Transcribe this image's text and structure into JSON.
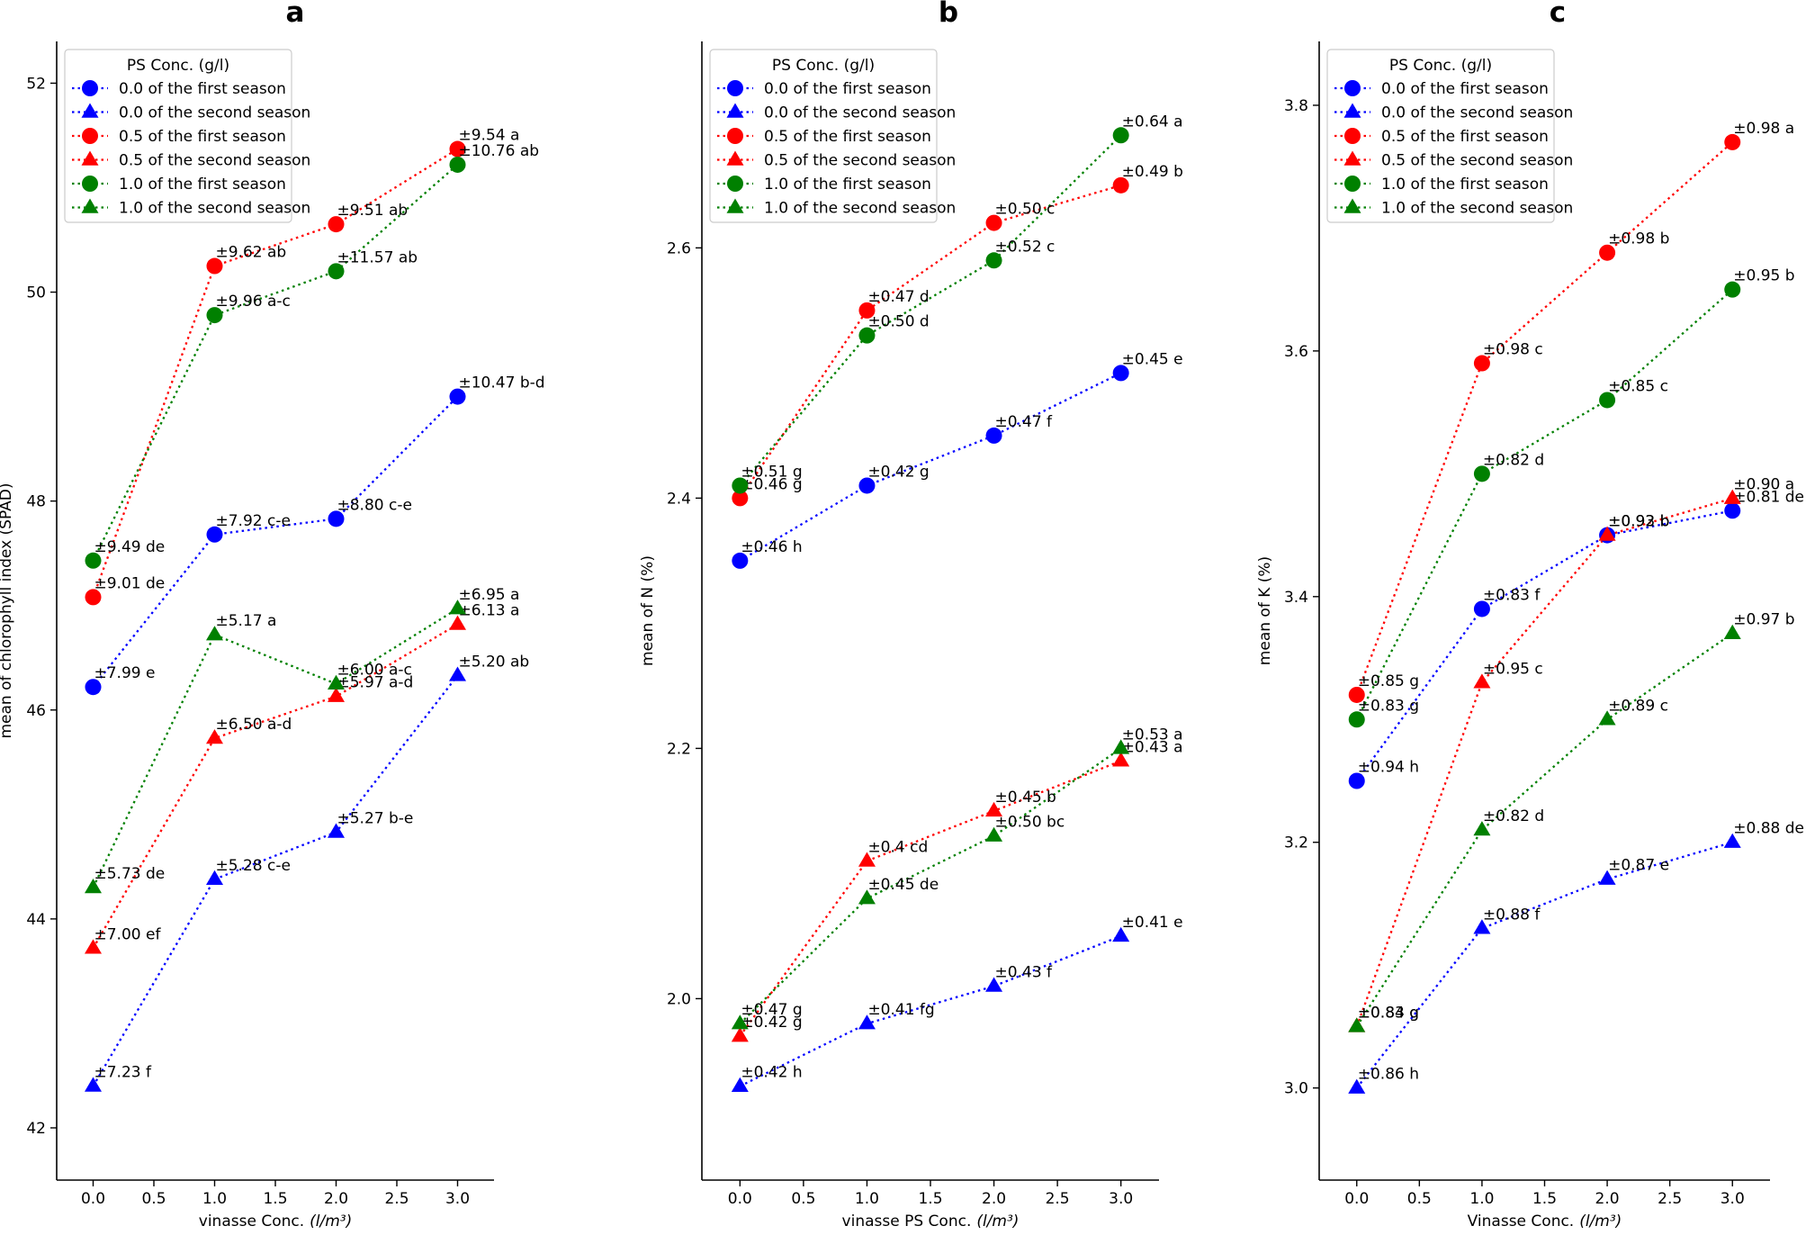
{
  "chart_data": [
    {
      "type": "line",
      "title": "a",
      "xlabel": "vinasse Conc.",
      "xlabel_unit": "(l/m³)",
      "ylabel": "mean of chlorophyll index (SPAD)",
      "xlim": [
        -0.3,
        3.3
      ],
      "ylim": [
        41.5,
        52.4
      ],
      "x_ticks": [
        0.0,
        0.5,
        1.0,
        1.5,
        2.0,
        2.5,
        3.0
      ],
      "x_tick_labels": [
        "0.0",
        "0.5",
        "1.0",
        "1.5",
        "2.0",
        "2.5",
        "3.0"
      ],
      "y_ticks": [
        42,
        44,
        46,
        48,
        50,
        52
      ],
      "y_tick_labels": [
        "42",
        "44",
        "46",
        "48",
        "50",
        "52"
      ],
      "x": [
        0,
        1,
        2,
        3
      ],
      "legend_title": "PS Conc. (g/l)",
      "legend_position": "top-left",
      "series": [
        {
          "name": "0.0 of the first season",
          "color": "#0000ff",
          "marker": "circle",
          "values": [
            46.22,
            47.68,
            47.83,
            49.0
          ],
          "labels": [
            "±7.99 e",
            "±7.92 c-e",
            "±8.80 c-e",
            "±10.47 b-d"
          ]
        },
        {
          "name": "0.0 of the second season",
          "color": "#0000ff",
          "marker": "triangle",
          "values": [
            42.4,
            44.38,
            44.83,
            46.33
          ],
          "labels": [
            "±7.23 f",
            "±5.28 c-e",
            "±5.27 b-e",
            "±5.20 ab"
          ]
        },
        {
          "name": "0.5 of the first season",
          "color": "#ff0000",
          "marker": "circle",
          "values": [
            47.08,
            50.25,
            50.65,
            51.37
          ],
          "labels": [
            "±9.01 de",
            "±9.62 ab",
            "±9.51 ab",
            "±9.54 a"
          ]
        },
        {
          "name": "0.5 of the second season",
          "color": "#ff0000",
          "marker": "triangle",
          "values": [
            43.72,
            45.73,
            46.13,
            46.82
          ],
          "labels": [
            "±7.00 ef",
            "±6.50 a-d",
            "±5.97 a-d",
            "±6.13 a"
          ]
        },
        {
          "name": "1.0 of the first season",
          "color": "#008000",
          "marker": "circle",
          "values": [
            47.43,
            49.78,
            50.2,
            51.22
          ],
          "labels": [
            "±9.49 de",
            "±9.96 a-c",
            "±11.57 ab",
            "±10.76 ab"
          ]
        },
        {
          "name": "1.0 of the second season",
          "color": "#008000",
          "marker": "triangle",
          "values": [
            44.3,
            46.72,
            46.25,
            46.97
          ],
          "labels": [
            "±5.73 de",
            "±5.17 a",
            "±6.00 a-c",
            "±6.95 a"
          ]
        }
      ]
    },
    {
      "type": "line",
      "title": "b",
      "xlabel": "vinasse PS Conc.",
      "xlabel_unit": "(l/m³)",
      "ylabel": "mean of N (%)",
      "xlim": [
        -0.3,
        3.3
      ],
      "ylim": [
        1.855,
        2.765
      ],
      "x_ticks": [
        0.0,
        0.5,
        1.0,
        1.5,
        2.0,
        2.5,
        3.0
      ],
      "x_tick_labels": [
        "0.0",
        "0.5",
        "1.0",
        "1.5",
        "2.0",
        "2.5",
        "3.0"
      ],
      "y_ticks": [
        2.0,
        2.2,
        2.4,
        2.6
      ],
      "y_tick_labels": [
        "2.0",
        "2.2",
        "2.4",
        "2.6"
      ],
      "x": [
        0,
        1,
        2,
        3
      ],
      "legend_title": "PS Conc. (g/l)",
      "legend_position": "top-left",
      "series": [
        {
          "name": "0.0 of the first season",
          "color": "#0000ff",
          "marker": "circle",
          "values": [
            2.35,
            2.41,
            2.45,
            2.5
          ],
          "labels": [
            "±0.46 h",
            "±0.42 g",
            "±0.47 f",
            "±0.45 e"
          ]
        },
        {
          "name": "0.0 of the second season",
          "color": "#0000ff",
          "marker": "triangle",
          "values": [
            1.93,
            1.98,
            2.01,
            2.05
          ],
          "labels": [
            "±0.42 h",
            "±0.41 fg",
            "±0.43 f",
            "±0.41 e"
          ]
        },
        {
          "name": "0.5 of the first season",
          "color": "#ff0000",
          "marker": "circle",
          "values": [
            2.4,
            2.55,
            2.62,
            2.65
          ],
          "labels": [
            "±0.46 g",
            "±0.47 d",
            "±0.50 c",
            "±0.49 b"
          ]
        },
        {
          "name": "0.5 of the second season",
          "color": "#ff0000",
          "marker": "triangle",
          "values": [
            1.97,
            2.11,
            2.15,
            2.19
          ],
          "labels": [
            "±0.42 g",
            "±0.4 cd",
            "±0.45 b",
            "±0.43 a"
          ]
        },
        {
          "name": "1.0 of the first season",
          "color": "#008000",
          "marker": "circle",
          "values": [
            2.41,
            2.53,
            2.59,
            2.69
          ],
          "labels": [
            "±0.51 g",
            "±0.50 d",
            "±0.52 c",
            "±0.64 a"
          ]
        },
        {
          "name": "1.0 of the second season",
          "color": "#008000",
          "marker": "triangle",
          "values": [
            1.98,
            2.08,
            2.13,
            2.2
          ],
          "labels": [
            "±0.47 g",
            "±0.45 de",
            "±0.50 bc",
            "±0.53 a"
          ]
        }
      ]
    },
    {
      "type": "line",
      "title": "c",
      "xlabel": "Vinasse Conc.",
      "xlabel_unit": "(l/m³)",
      "ylabel": "mean of K (%)",
      "xlim": [
        -0.3,
        3.3
      ],
      "ylim": [
        2.925,
        3.852
      ],
      "x_ticks": [
        0.0,
        0.5,
        1.0,
        1.5,
        2.0,
        2.5,
        3.0
      ],
      "x_tick_labels": [
        "0.0",
        "0.5",
        "1.0",
        "1.5",
        "2.0",
        "2.5",
        "3.0"
      ],
      "y_ticks": [
        3.0,
        3.2,
        3.4,
        3.6,
        3.8
      ],
      "y_tick_labels": [
        "3.0",
        "3.2",
        "3.4",
        "3.6",
        "3.8"
      ],
      "x": [
        0,
        1,
        2,
        3
      ],
      "legend_title": "PS Conc. (g/l)",
      "legend_position": "top-left",
      "series": [
        {
          "name": "0.0 of the first season",
          "color": "#0000ff",
          "marker": "circle",
          "values": [
            3.25,
            3.39,
            3.45,
            3.47
          ],
          "labels": [
            "±0.94 h",
            "±0.83 f",
            "±0.92 b",
            "±0.81 de"
          ]
        },
        {
          "name": "0.0 of the second season",
          "color": "#0000ff",
          "marker": "triangle",
          "values": [
            3.0,
            3.13,
            3.17,
            3.2
          ],
          "labels": [
            "±0.86 h",
            "±0.88 f",
            "±0.87 e",
            "±0.88 de"
          ]
        },
        {
          "name": "0.5 of the first season",
          "color": "#ff0000",
          "marker": "circle",
          "values": [
            3.32,
            3.59,
            3.68,
            3.77
          ],
          "labels": [
            "±0.85 g",
            "±0.98 c",
            "±0.98 b",
            "±0.98 a"
          ]
        },
        {
          "name": "0.5 of the second season",
          "color": "#ff0000",
          "marker": "triangle",
          "values": [
            3.05,
            3.33,
            3.45,
            3.48
          ],
          "labels": [
            "±0.83 g",
            "±0.95 c",
            "±0.93 b",
            "±0.90 a"
          ]
        },
        {
          "name": "1.0 of the first season",
          "color": "#008000",
          "marker": "circle",
          "values": [
            3.3,
            3.5,
            3.56,
            3.65
          ],
          "labels": [
            "±0.83 g",
            "±0.82 d",
            "±0.85 c",
            "±0.95 b"
          ]
        },
        {
          "name": "1.0 of the second season",
          "color": "#008000",
          "marker": "triangle",
          "values": [
            3.05,
            3.21,
            3.3,
            3.37
          ],
          "labels": [
            "±0.84 g",
            "±0.82 d",
            "±0.89 c",
            "±0.97 b"
          ]
        }
      ]
    }
  ]
}
